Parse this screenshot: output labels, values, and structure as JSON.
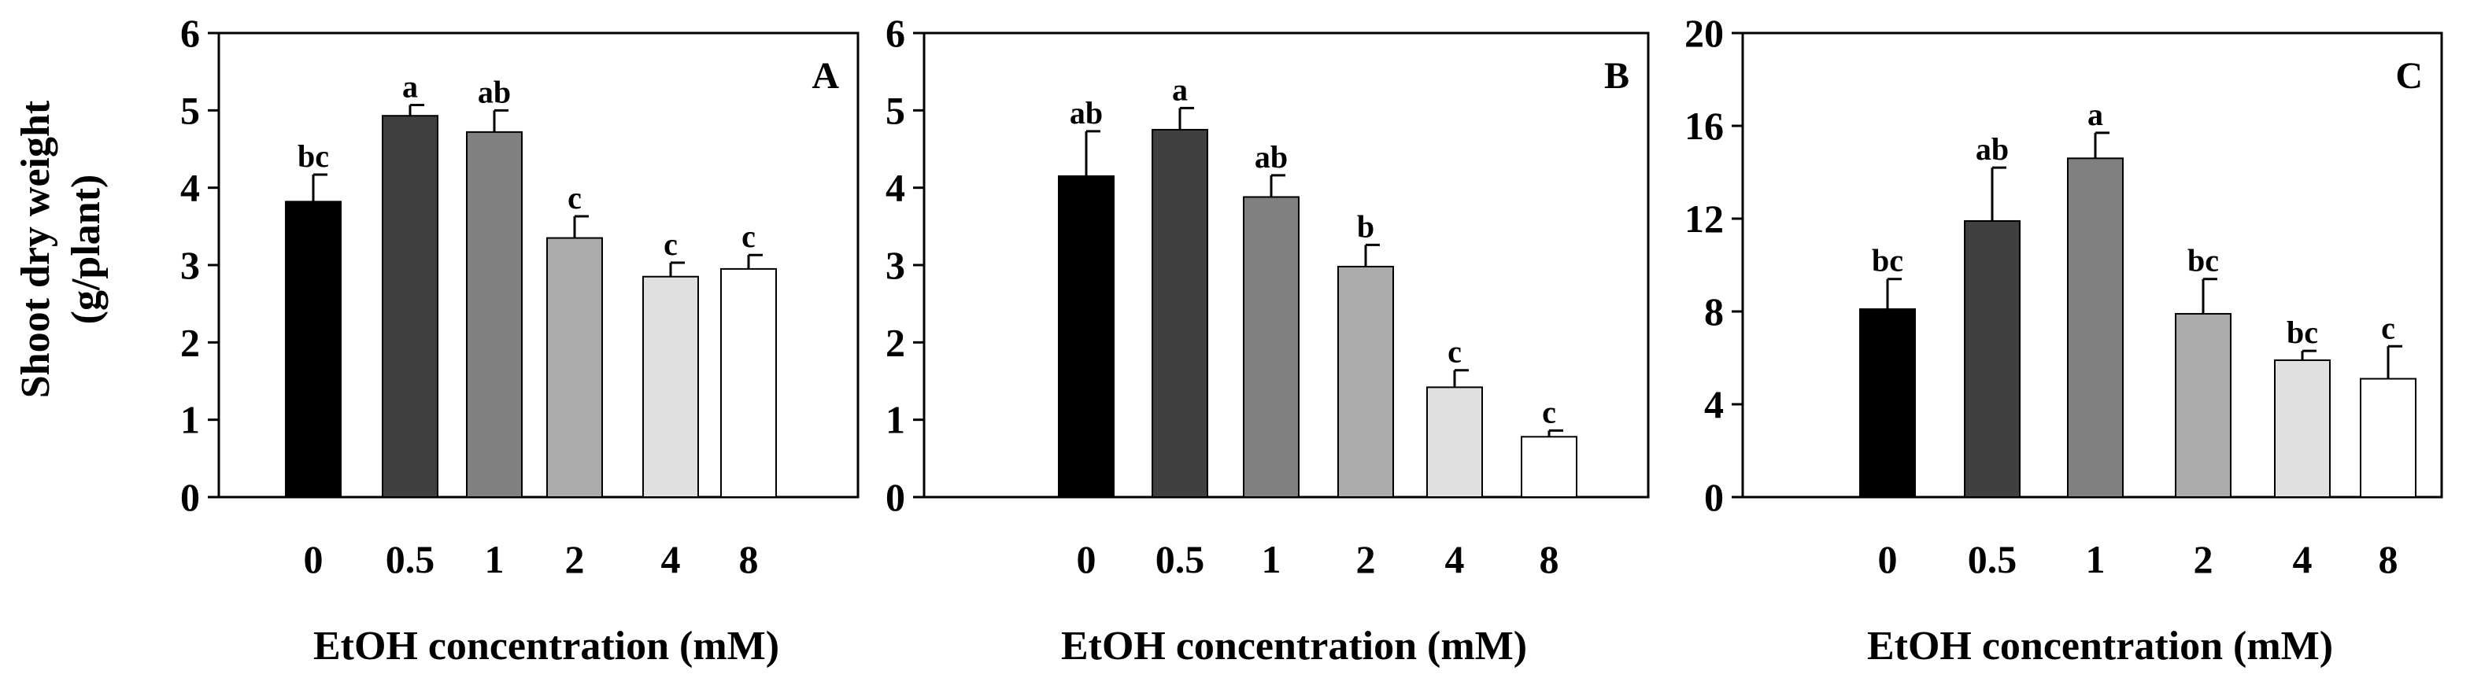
{
  "chart_data": [
    {
      "type": "bar",
      "panel_label": "A",
      "categories": [
        "0",
        "0.5",
        "1",
        "2",
        "4",
        "8"
      ],
      "values": [
        3.82,
        4.93,
        4.72,
        3.35,
        2.85,
        2.95
      ],
      "errors": [
        0.35,
        0.14,
        0.28,
        0.28,
        0.18,
        0.18
      ],
      "significance": [
        "bc",
        "a",
        "ab",
        "c",
        "c",
        "c"
      ],
      "bar_colors": [
        "#000000",
        "#404040",
        "#808080",
        "#ababab",
        "#e0e0e0",
        "#ffffff"
      ],
      "ylabel": "Shoot dry weight (g/plant)",
      "ylabel_lines": [
        "Shoot dry weight",
        "(g/plant)"
      ],
      "xlabel": "EtOH concentration (mM)",
      "ylim": [
        0,
        6
      ],
      "yticks": [
        "0",
        "1",
        "2",
        "3",
        "4",
        "5",
        "6"
      ]
    },
    {
      "type": "bar",
      "panel_label": "B",
      "categories": [
        "0",
        "0.5",
        "1",
        "2",
        "4",
        "8"
      ],
      "values": [
        4.15,
        4.75,
        3.88,
        2.98,
        1.42,
        0.78
      ],
      "errors": [
        0.58,
        0.28,
        0.28,
        0.28,
        0.22,
        0.08
      ],
      "significance": [
        "ab",
        "a",
        "ab",
        "b",
        "c",
        "c"
      ],
      "bar_colors": [
        "#000000",
        "#404040",
        "#808080",
        "#ababab",
        "#e0e0e0",
        "#ffffff"
      ],
      "xlabel": "EtOH concentration (mM)",
      "ylim": [
        0,
        6
      ],
      "yticks": [
        "0",
        "1",
        "2",
        "3",
        "4",
        "5",
        "6"
      ]
    },
    {
      "type": "bar",
      "panel_label": "C",
      "categories": [
        "0",
        "0.5",
        "1",
        "2",
        "4",
        "8"
      ],
      "values": [
        8.1,
        11.9,
        14.6,
        7.9,
        5.9,
        5.1
      ],
      "errors": [
        1.3,
        2.3,
        1.1,
        1.5,
        0.4,
        1.4
      ],
      "significance": [
        "bc",
        "ab",
        "a",
        "bc",
        "bc",
        "c"
      ],
      "bar_colors": [
        "#000000",
        "#404040",
        "#808080",
        "#ababab",
        "#e0e0e0",
        "#ffffff"
      ],
      "xlabel": "EtOH concentration (mM)",
      "ylim": [
        0,
        20
      ],
      "yticks": [
        "0",
        "4",
        "8",
        "12",
        "16",
        "20"
      ]
    }
  ]
}
